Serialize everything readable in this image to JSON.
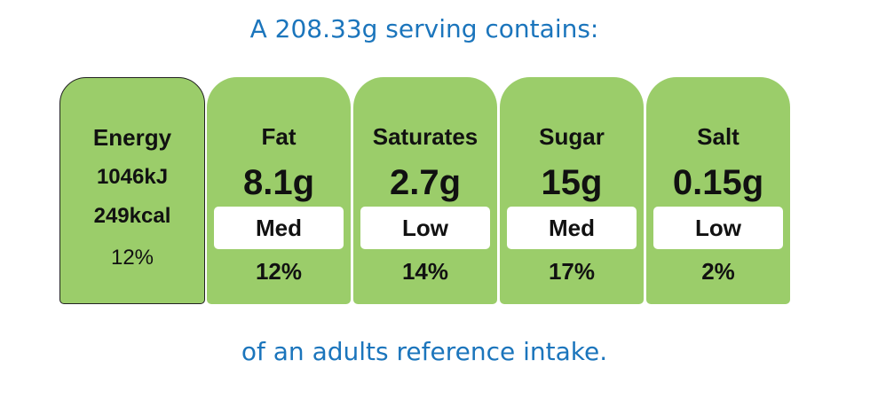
{
  "header": {
    "title": "A 208.33g serving contains:"
  },
  "energy": {
    "label": "Energy",
    "kj": "1046kJ",
    "kcal": "249kcal",
    "percent": "12%"
  },
  "nutrients": [
    {
      "name": "Fat",
      "amount": "8.1g",
      "level": "Med",
      "percent": "12%"
    },
    {
      "name": "Saturates",
      "amount": "2.7g",
      "level": "Low",
      "percent": "14%"
    },
    {
      "name": "Sugar",
      "amount": "15g",
      "level": "Med",
      "percent": "17%"
    },
    {
      "name": "Salt",
      "amount": "0.15g",
      "level": "Low",
      "percent": "2%"
    }
  ],
  "footer": {
    "text": "of an adults reference intake."
  }
}
